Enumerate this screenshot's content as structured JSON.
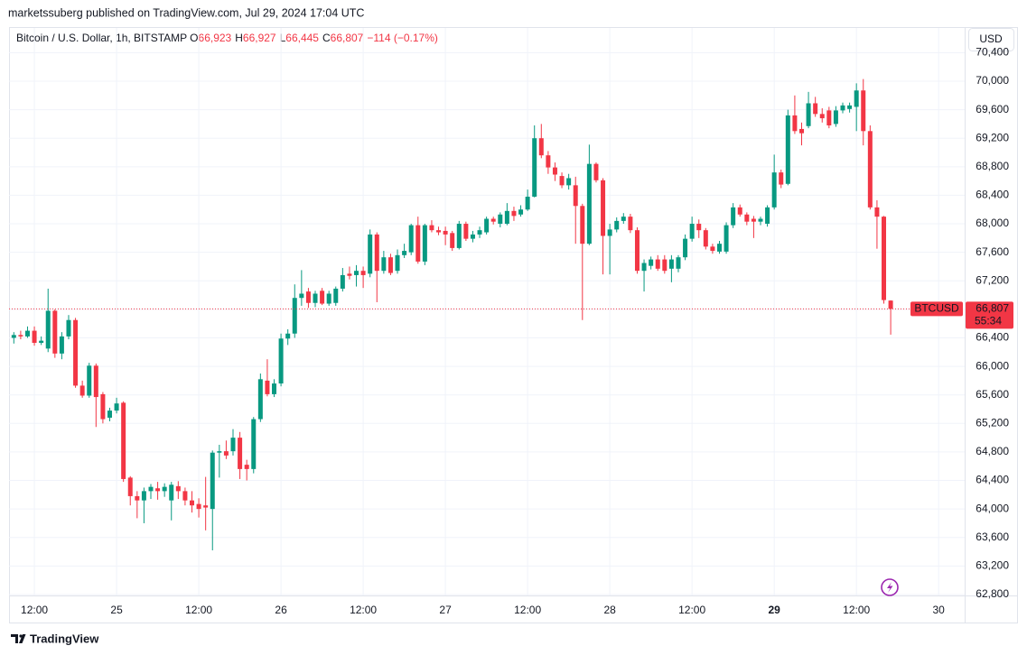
{
  "published": "marketssuberg published on TradingView.com, Jul 29, 2024 17:04 UTC",
  "footer": "TradingView",
  "currency_button": "USD",
  "chart_data": {
    "type": "candlestick",
    "title": "Bitcoin / U.S. Dollar, 1h, BITSTAMP",
    "ohlc_header": [
      {
        "key": "O",
        "value": "66,923"
      },
      {
        "key": "H",
        "value": "66,927"
      },
      {
        "key": "L",
        "value": "66,445"
      },
      {
        "key": "C",
        "value": "66,807"
      }
    ],
    "change": "−114 (−0.17%)",
    "symbol_tag": "BTCUSD",
    "last_price_label": "66,807",
    "countdown": "55:34",
    "up_color": "#089981",
    "down_color": "#f23645",
    "grid": true,
    "xlim": [
      -0.7,
      138.8
    ],
    "ylim": [
      62787,
      70506
    ],
    "xticks": [
      {
        "value": 3,
        "label": "12:00"
      },
      {
        "value": 15,
        "label": "25"
      },
      {
        "value": 27,
        "label": "12:00"
      },
      {
        "value": 39,
        "label": "26"
      },
      {
        "value": 51,
        "label": "12:00"
      },
      {
        "value": 63,
        "label": "27"
      },
      {
        "value": 75,
        "label": "12:00"
      },
      {
        "value": 87,
        "label": "28"
      },
      {
        "value": 99,
        "label": "12:00"
      },
      {
        "value": 111,
        "label": "29",
        "bold": true
      },
      {
        "value": 123,
        "label": "12:00"
      },
      {
        "value": 135,
        "label": "30"
      }
    ],
    "yticks": [
      {
        "value": 62800,
        "label": "62,800"
      },
      {
        "value": 63200,
        "label": "63,200"
      },
      {
        "value": 63600,
        "label": "63,600"
      },
      {
        "value": 64000,
        "label": "64,000"
      },
      {
        "value": 64400,
        "label": "64,400"
      },
      {
        "value": 64800,
        "label": "64,800"
      },
      {
        "value": 65200,
        "label": "65,200"
      },
      {
        "value": 65600,
        "label": "65,600"
      },
      {
        "value": 66000,
        "label": "66,000"
      },
      {
        "value": 66400,
        "label": "66,400"
      },
      {
        "value": 66800,
        "label": "66,800"
      },
      {
        "value": 67200,
        "label": "67,200"
      },
      {
        "value": 67600,
        "label": "67,600"
      },
      {
        "value": 68000,
        "label": "68,000"
      },
      {
        "value": 68400,
        "label": "68,400"
      },
      {
        "value": 68800,
        "label": "68,800"
      },
      {
        "value": 69200,
        "label": "69,200"
      },
      {
        "value": 69600,
        "label": "69,600"
      },
      {
        "value": 70000,
        "label": "70,000"
      },
      {
        "value": 70400,
        "label": "70,400"
      }
    ],
    "open": [
      66400,
      66440,
      66420,
      66500,
      66330,
      66250,
      66780,
      66180,
      66420,
      66650,
      65730,
      65590,
      66010,
      65610,
      65280,
      65380,
      65490,
      64440,
      64180,
      64120,
      64250,
      64290,
      64250,
      64120,
      64320,
      64250,
      64120,
      64070,
      64050,
      64000,
      64790,
      64810,
      64810,
      65000,
      64620,
      64560,
      65260,
      65800,
      65610,
      65760,
      66390,
      66460,
      66960,
      67050,
      66890,
      67060,
      66880,
      66890,
      67090,
      67300,
      67280,
      67340,
      67300,
      67850,
      67340,
      67530,
      67340,
      67560,
      67600,
      67980,
      67470,
      67980,
      67910,
      67900,
      67870,
      67660,
      68000,
      67790,
      67850,
      67880,
      68070,
      68000,
      68000,
      68180,
      68130,
      68200,
      68380,
      69200,
      68960,
      68790,
      68670,
      68540,
      68540,
      68250,
      67720,
      68840,
      68610,
      67830,
      67920,
      68040,
      68100,
      67910,
      67340,
      67410,
      67500,
      67500,
      67370,
      67370,
      67530,
      67790,
      68000,
      67910,
      67680,
      67610,
      67610,
      67980,
      68230,
      68130,
      68070,
      68030,
      68000,
      68230,
      68720,
      68560,
      69520,
      69330,
      69370,
      69690,
      69540,
      69590,
      69400,
      69590,
      69610,
      69640,
      69870,
      69300,
      68230,
      68100,
      66923
    ],
    "high": [
      66480,
      66500,
      66560,
      66560,
      66420,
      67090,
      66800,
      66480,
      66720,
      66680,
      65800,
      66050,
      66040,
      65640,
      65420,
      65560,
      65510,
      64460,
      64250,
      64300,
      64350,
      64380,
      64360,
      64380,
      64390,
      64300,
      64250,
      64150,
      64450,
      64820,
      64900,
      64960,
      65120,
      65080,
      64690,
      65290,
      65900,
      66100,
      65820,
      66460,
      66520,
      67150,
      67350,
      67100,
      67060,
      67100,
      67060,
      67120,
      67380,
      67400,
      67420,
      67400,
      67920,
      67880,
      67620,
      67580,
      67640,
      67720,
      68000,
      68100,
      68000,
      68050,
      67960,
      67960,
      67900,
      68040,
      68030,
      67900,
      67960,
      68100,
      68100,
      68160,
      68290,
      68240,
      68260,
      68480,
      69380,
      69400,
      69020,
      68860,
      68720,
      68700,
      68660,
      68280,
      69110,
      68860,
      68640,
      68000,
      68090,
      68150,
      68140,
      67950,
      67500,
      67540,
      67560,
      67560,
      67560,
      67560,
      67850,
      68100,
      68060,
      67940,
      67720,
      67760,
      68020,
      68290,
      68270,
      68160,
      68110,
      68100,
      68260,
      68970,
      68760,
      69600,
      69800,
      69420,
      69850,
      69780,
      69620,
      69640,
      69650,
      69700,
      69700,
      69970,
      70030,
      69380,
      68330,
      68110,
      66927
    ],
    "low": [
      66320,
      66380,
      66400,
      66290,
      66300,
      66200,
      66120,
      66100,
      66380,
      65700,
      65560,
      65560,
      65150,
      65200,
      65230,
      65340,
      64380,
      64050,
      63870,
      63800,
      64140,
      64130,
      64170,
      63840,
      64140,
      64050,
      63950,
      63880,
      63700,
      63420,
      64440,
      64700,
      64750,
      64420,
      64400,
      64500,
      65220,
      65580,
      65570,
      65720,
      66300,
      66400,
      66850,
      66820,
      66830,
      66860,
      66850,
      66850,
      67050,
      67220,
      67120,
      67100,
      67250,
      66900,
      67300,
      67280,
      67300,
      67520,
      67560,
      67440,
      67420,
      67880,
      67840,
      67700,
      67620,
      67640,
      67760,
      67740,
      67800,
      67850,
      67990,
      67950,
      67980,
      68040,
      68100,
      68180,
      68370,
      68920,
      68700,
      68600,
      68500,
      68480,
      67720,
      66650,
      67700,
      68580,
      67290,
      67290,
      67880,
      68000,
      67870,
      67300,
      67050,
      67360,
      67340,
      67300,
      67180,
      67320,
      67490,
      67750,
      67800,
      67640,
      67580,
      67580,
      67580,
      67940,
      68100,
      67980,
      67800,
      67980,
      67960,
      68200,
      68500,
      68540,
      69260,
      69100,
      69340,
      69500,
      69420,
      69340,
      69360,
      69550,
      69560,
      69300,
      69100,
      68200,
      67650,
      66880,
      66445
    ],
    "close": [
      66440,
      66420,
      66500,
      66330,
      66360,
      66780,
      66180,
      66420,
      66650,
      65730,
      65590,
      66010,
      65570,
      65260,
      65380,
      65480,
      64420,
      64180,
      64120,
      64250,
      64310,
      64250,
      64310,
      64340,
      64250,
      64120,
      64050,
      64000,
      64020,
      64790,
      64810,
      64750,
      65000,
      64560,
      64560,
      65260,
      65820,
      65610,
      65760,
      66390,
      66460,
      66960,
      67020,
      66890,
      67020,
      66880,
      67020,
      67090,
      67280,
      67270,
      67340,
      67280,
      67850,
      67340,
      67530,
      67310,
      67560,
      67620,
      67980,
      67470,
      67980,
      67910,
      67880,
      67850,
      67660,
      68000,
      67790,
      67850,
      67910,
      68070,
      68030,
      68130,
      68180,
      68110,
      68200,
      68380,
      69200,
      68960,
      68790,
      68690,
      68540,
      68640,
      68250,
      67720,
      68840,
      68610,
      67830,
      67920,
      68040,
      68100,
      67910,
      67340,
      67450,
      67500,
      67370,
      67340,
      67500,
      67530,
      67790,
      68000,
      67910,
      67680,
      67620,
      67720,
      67980,
      68230,
      68130,
      68030,
      68030,
      68070,
      68230,
      68720,
      68550,
      69520,
      69300,
      69270,
      69690,
      69540,
      69480,
      69380,
      69590,
      69660,
      69660,
      69870,
      69300,
      68230,
      68100,
      66930,
      66807
    ]
  }
}
